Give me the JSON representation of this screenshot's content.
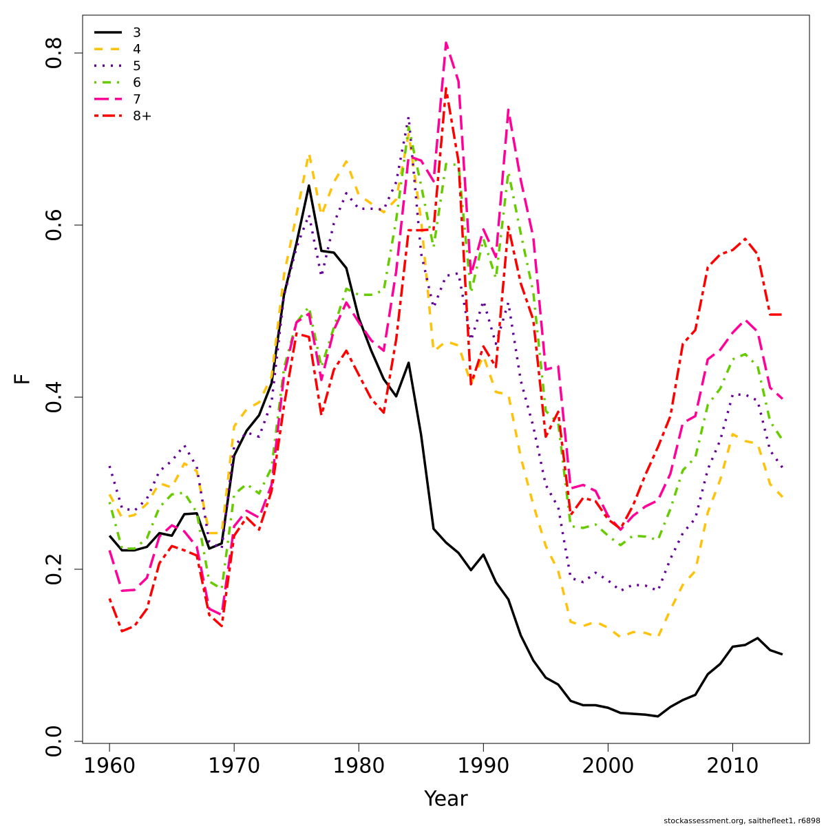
{
  "chart_data": {
    "type": "line",
    "x_label": "Year",
    "y_label": "F",
    "note": "stockassessment.org, saithefleet1, r6898",
    "x": [
      1960,
      1961,
      1962,
      1963,
      1964,
      1965,
      1966,
      1967,
      1968,
      1969,
      1970,
      1971,
      1972,
      1973,
      1974,
      1975,
      1976,
      1977,
      1978,
      1979,
      1980,
      1981,
      1982,
      1983,
      1984,
      1985,
      1986,
      1987,
      1988,
      1989,
      1990,
      1991,
      1992,
      1993,
      1994,
      1995,
      1996,
      1997,
      1998,
      1999,
      2000,
      2001,
      2002,
      2003,
      2004,
      2005,
      2006,
      2007,
      2008,
      2009,
      2010,
      2011,
      2012,
      2013,
      2014
    ],
    "series": [
      {
        "name": "3",
        "color": "#000000",
        "dash": "solid",
        "values": [
          0.239,
          0.222,
          0.222,
          0.226,
          0.242,
          0.239,
          0.264,
          0.265,
          0.224,
          0.23,
          0.332,
          0.361,
          0.379,
          0.416,
          0.519,
          0.579,
          0.646,
          0.57,
          0.568,
          0.55,
          0.492,
          0.454,
          0.421,
          0.401,
          0.44,
          0.356,
          0.247,
          0.231,
          0.219,
          0.199,
          0.217,
          0.185,
          0.165,
          0.123,
          0.094,
          0.074,
          0.066,
          0.047,
          0.042,
          0.042,
          0.039,
          0.033,
          0.032,
          0.031,
          0.029,
          0.04,
          0.048,
          0.054,
          0.078,
          0.09,
          0.11,
          0.112,
          0.12,
          0.106,
          0.101
        ]
      },
      {
        "name": "4",
        "color": "#ffc20a",
        "dash": "dashed",
        "values": [
          0.287,
          0.26,
          0.263,
          0.276,
          0.3,
          0.295,
          0.323,
          0.314,
          0.242,
          0.242,
          0.366,
          0.386,
          0.394,
          0.424,
          0.542,
          0.612,
          0.684,
          0.611,
          0.65,
          0.674,
          0.635,
          0.625,
          0.615,
          0.63,
          0.706,
          0.606,
          0.453,
          0.465,
          0.46,
          0.416,
          0.448,
          0.406,
          0.403,
          0.33,
          0.275,
          0.227,
          0.198,
          0.139,
          0.134,
          0.139,
          0.132,
          0.121,
          0.127,
          0.126,
          0.121,
          0.153,
          0.182,
          0.198,
          0.266,
          0.304,
          0.357,
          0.349,
          0.346,
          0.299,
          0.284
        ]
      },
      {
        "name": "5",
        "color": "#660099",
        "dash": "dotted",
        "values": [
          0.32,
          0.271,
          0.268,
          0.282,
          0.314,
          0.326,
          0.344,
          0.319,
          0.232,
          0.224,
          0.343,
          0.359,
          0.354,
          0.394,
          0.518,
          0.574,
          0.612,
          0.54,
          0.602,
          0.637,
          0.619,
          0.619,
          0.618,
          0.65,
          0.726,
          0.567,
          0.504,
          0.541,
          0.544,
          0.466,
          0.512,
          0.462,
          0.51,
          0.419,
          0.366,
          0.298,
          0.272,
          0.19,
          0.185,
          0.196,
          0.187,
          0.175,
          0.182,
          0.181,
          0.175,
          0.212,
          0.242,
          0.259,
          0.316,
          0.35,
          0.403,
          0.403,
          0.396,
          0.338,
          0.318
        ]
      },
      {
        "name": "6",
        "color": "#66cc00",
        "dash": "dotdash",
        "values": [
          0.278,
          0.224,
          0.224,
          0.236,
          0.272,
          0.287,
          0.289,
          0.266,
          0.186,
          0.177,
          0.287,
          0.299,
          0.288,
          0.318,
          0.434,
          0.487,
          0.505,
          0.435,
          0.481,
          0.526,
          0.519,
          0.519,
          0.524,
          0.606,
          0.714,
          0.646,
          0.574,
          0.671,
          0.67,
          0.521,
          0.584,
          0.538,
          0.662,
          0.59,
          0.522,
          0.384,
          0.37,
          0.25,
          0.248,
          0.252,
          0.239,
          0.228,
          0.239,
          0.238,
          0.234,
          0.27,
          0.315,
          0.33,
          0.391,
          0.41,
          0.444,
          0.45,
          0.436,
          0.372,
          0.35
        ]
      },
      {
        "name": "7",
        "color": "#ff0099",
        "dash": "longdash",
        "values": [
          0.222,
          0.175,
          0.176,
          0.19,
          0.238,
          0.251,
          0.244,
          0.226,
          0.154,
          0.147,
          0.25,
          0.268,
          0.26,
          0.298,
          0.426,
          0.487,
          0.497,
          0.42,
          0.478,
          0.51,
          0.487,
          0.466,
          0.454,
          0.546,
          0.68,
          0.675,
          0.651,
          0.812,
          0.767,
          0.542,
          0.595,
          0.563,
          0.734,
          0.652,
          0.586,
          0.432,
          0.436,
          0.294,
          0.298,
          0.291,
          0.262,
          0.246,
          0.262,
          0.273,
          0.28,
          0.311,
          0.37,
          0.378,
          0.444,
          0.455,
          0.475,
          0.49,
          0.476,
          0.411,
          0.398
        ]
      },
      {
        "name": "8+",
        "color": "#ff0000",
        "dash": "twodash",
        "values": [
          0.166,
          0.128,
          0.134,
          0.154,
          0.207,
          0.227,
          0.222,
          0.216,
          0.147,
          0.134,
          0.239,
          0.26,
          0.246,
          0.291,
          0.39,
          0.474,
          0.47,
          0.379,
          0.432,
          0.454,
          0.426,
          0.398,
          0.382,
          0.467,
          0.594,
          0.594,
          0.595,
          0.759,
          0.674,
          0.415,
          0.459,
          0.435,
          0.598,
          0.532,
          0.49,
          0.354,
          0.383,
          0.263,
          0.283,
          0.279,
          0.258,
          0.247,
          0.274,
          0.31,
          0.342,
          0.378,
          0.462,
          0.478,
          0.551,
          0.566,
          0.571,
          0.584,
          0.566,
          0.496,
          0.496
        ]
      }
    ],
    "xlim": [
      1957.84,
      2016.16
    ],
    "ylim": [
      -0.0024,
      0.844
    ],
    "xticks": [
      1960,
      1970,
      1980,
      1990,
      2000,
      2010
    ],
    "yticks": [
      {
        "value": 0,
        "label": "0.0"
      },
      0.2,
      0.4,
      0.6,
      0.8
    ],
    "legend": "top-left"
  }
}
